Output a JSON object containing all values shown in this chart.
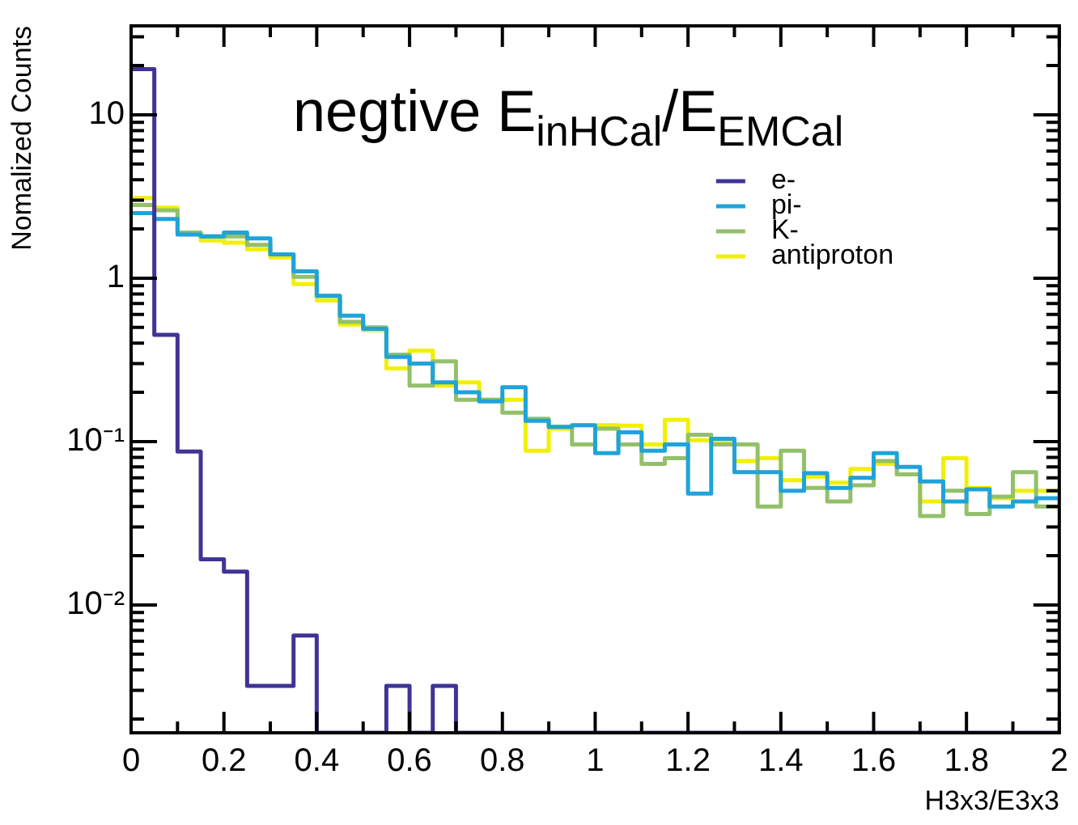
{
  "chart_data": {
    "type": "histogram",
    "title": "negtive E$_{inHCal}$/E$_{EMCal}$",
    "xlabel": "H3x3/E3x3",
    "ylabel": "Nomalized Counts",
    "log": "y",
    "grid": false,
    "legend": "top right",
    "bins": [
      0,
      0.05,
      0.1,
      0.15,
      0.2,
      0.25,
      0.3,
      0.35,
      0.4,
      0.45,
      0.5,
      0.55,
      0.6,
      0.65,
      0.7,
      0.75,
      0.8,
      0.85,
      0.9,
      0.95,
      1,
      1.05,
      1.1,
      1.15,
      1.2,
      1.25,
      1.3,
      1.35,
      1.4,
      1.45,
      1.5,
      1.55,
      1.6,
      1.65,
      1.7,
      1.75,
      1.8,
      1.85,
      1.9,
      1.95,
      2
    ],
    "xlim": [
      0,
      2
    ],
    "xticks": [
      0,
      {
        "value": 0.1,
        "label": null
      },
      0.2,
      {
        "value": 0.3,
        "label": null
      },
      0.4,
      {
        "value": 0.5,
        "label": null
      },
      0.6,
      {
        "value": 0.7,
        "label": null
      },
      0.8,
      {
        "value": 0.9,
        "label": null
      },
      1,
      {
        "value": 1.1,
        "label": null
      },
      1.2,
      {
        "value": 1.3,
        "label": null
      },
      1.4,
      {
        "value": 1.5,
        "label": null
      },
      1.6,
      {
        "value": 1.7,
        "label": null
      },
      1.8,
      {
        "value": 1.9,
        "label": null
      },
      2
    ],
    "ylim": [
      0.00165,
      35
    ],
    "yticks": [
      {
        "value": 0.002,
        "label": null
      },
      {
        "value": 0.003,
        "label": null
      },
      {
        "value": 0.004,
        "label": null
      },
      {
        "value": 0.005,
        "label": null
      },
      {
        "value": 0.006,
        "label": null
      },
      {
        "value": 0.007,
        "label": null
      },
      {
        "value": 0.008,
        "label": null
      },
      {
        "value": 0.009,
        "label": null
      },
      {
        "value": 0.01,
        "label": "10⁻²"
      },
      {
        "value": 0.02,
        "label": null
      },
      {
        "value": 0.03,
        "label": null
      },
      {
        "value": 0.04,
        "label": null
      },
      {
        "value": 0.05,
        "label": null
      },
      {
        "value": 0.06,
        "label": null
      },
      {
        "value": 0.07,
        "label": null
      },
      {
        "value": 0.08,
        "label": null
      },
      {
        "value": 0.09,
        "label": null
      },
      {
        "value": 0.1,
        "label": "10⁻¹"
      },
      {
        "value": 0.2,
        "label": null
      },
      {
        "value": 0.3,
        "label": null
      },
      {
        "value": 0.4,
        "label": null
      },
      {
        "value": 0.5,
        "label": null
      },
      {
        "value": 0.6,
        "label": null
      },
      {
        "value": 0.7,
        "label": null
      },
      {
        "value": 0.8,
        "label": null
      },
      {
        "value": 0.9,
        "label": null
      },
      1,
      {
        "value": 2,
        "label": null
      },
      {
        "value": 3,
        "label": null
      },
      {
        "value": 4,
        "label": null
      },
      {
        "value": 5,
        "label": null
      },
      {
        "value": 6,
        "label": null
      },
      {
        "value": 7,
        "label": null
      },
      {
        "value": 8,
        "label": null
      },
      {
        "value": 9,
        "label": null
      },
      10,
      {
        "value": 20,
        "label": null
      },
      {
        "value": 30,
        "label": null
      }
    ],
    "series": [
      {
        "name": "e-",
        "color": "#3f3495",
        "values": [
          19,
          0.45,
          0.087,
          0.019,
          0.016,
          0.0032,
          0.0032,
          0.0065,
          null,
          null,
          null,
          0.0032,
          null,
          0.0032,
          null,
          null,
          null,
          null,
          null,
          null,
          null,
          null,
          null,
          null,
          null,
          null,
          null,
          null,
          null,
          null,
          null,
          null,
          null,
          null,
          null,
          null,
          null,
          null,
          null,
          null
        ]
      },
      {
        "name": "pi-",
        "color": "#1fa3d9",
        "values": [
          2.5,
          2.3,
          1.85,
          1.8,
          1.9,
          1.75,
          1.4,
          1.1,
          0.78,
          0.59,
          0.49,
          0.33,
          0.3,
          0.23,
          0.2,
          0.176,
          0.215,
          0.134,
          0.123,
          0.126,
          0.085,
          0.114,
          0.088,
          0.096,
          0.048,
          0.104,
          0.065,
          0.065,
          0.05,
          0.064,
          0.052,
          0.06,
          0.085,
          0.07,
          0.057,
          0.043,
          0.051,
          0.04,
          0.043,
          0.045
        ]
      },
      {
        "name": "K-",
        "color": "#93c06a",
        "values": [
          2.8,
          2.6,
          1.9,
          1.8,
          1.8,
          1.6,
          1.4,
          1.02,
          0.78,
          0.54,
          0.5,
          0.34,
          0.22,
          0.31,
          0.18,
          0.18,
          0.15,
          0.138,
          0.123,
          0.096,
          0.12,
          0.096,
          0.073,
          0.079,
          0.11,
          0.096,
          0.096,
          0.04,
          0.088,
          0.052,
          0.043,
          0.054,
          0.076,
          0.063,
          0.035,
          0.05,
          0.036,
          0.046,
          0.065,
          0.04
        ]
      },
      {
        "name": "antiproton",
        "color": "#f0f000",
        "values": [
          3.1,
          2.7,
          1.9,
          1.7,
          1.65,
          1.5,
          1.34,
          0.92,
          0.73,
          0.52,
          0.48,
          0.28,
          0.36,
          0.22,
          0.23,
          0.18,
          0.18,
          0.088,
          0.12,
          0.126,
          0.126,
          0.125,
          0.096,
          0.136,
          0.102,
          0.1,
          0.076,
          0.079,
          0.058,
          0.061,
          0.056,
          0.068,
          0.073,
          0.063,
          0.043,
          0.079,
          0.052,
          0.045,
          0.05,
          0.05
        ]
      }
    ]
  }
}
